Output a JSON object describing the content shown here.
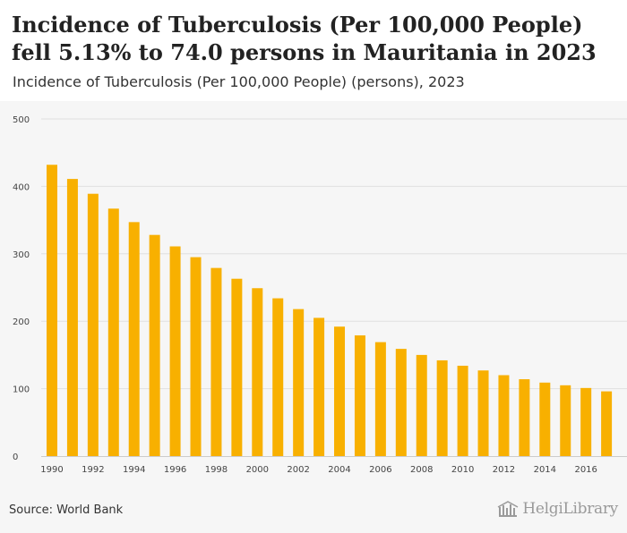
{
  "header": {
    "title": "Incidence of Tuberculosis (Per 100,000 People) fell 5.13% to 74.0 persons in Mauritania in 2023",
    "subtitle": "Incidence of Tuberculosis (Per 100,000 People) (persons), 2023"
  },
  "footer": {
    "source": "Source: World Bank",
    "brand": "HelgiLibrary"
  },
  "colors": {
    "bar": "#f8b000",
    "grid": "#e0e0e0",
    "axis_text": "#444444",
    "background": "#f6f6f6"
  },
  "chart_data": {
    "type": "bar",
    "title": "Incidence of Tuberculosis (Per 100,000 People) (persons), 2023",
    "xlabel": "",
    "ylabel": "",
    "ylim": [
      0,
      500
    ],
    "yticks": [
      0,
      100,
      200,
      300,
      400,
      500
    ],
    "grid": true,
    "categories": [
      "1990",
      "1991",
      "1992",
      "1993",
      "1994",
      "1995",
      "1996",
      "1997",
      "1998",
      "1999",
      "2000",
      "2001",
      "2002",
      "2003",
      "2004",
      "2005",
      "2006",
      "2007",
      "2008",
      "2009",
      "2010",
      "2011",
      "2012",
      "2013",
      "2014",
      "2015",
      "2016",
      "2017"
    ],
    "xtick_labels": [
      "1990",
      "1992",
      "1994",
      "1996",
      "1998",
      "2000",
      "2002",
      "2004",
      "2006",
      "2008",
      "2010",
      "2012",
      "2014",
      "2016"
    ],
    "values": [
      432,
      411,
      389,
      367,
      347,
      328,
      311,
      295,
      279,
      263,
      249,
      234,
      218,
      205,
      192,
      179,
      169,
      159,
      150,
      142,
      134,
      127,
      120,
      114,
      109,
      105,
      101,
      96
    ]
  }
}
